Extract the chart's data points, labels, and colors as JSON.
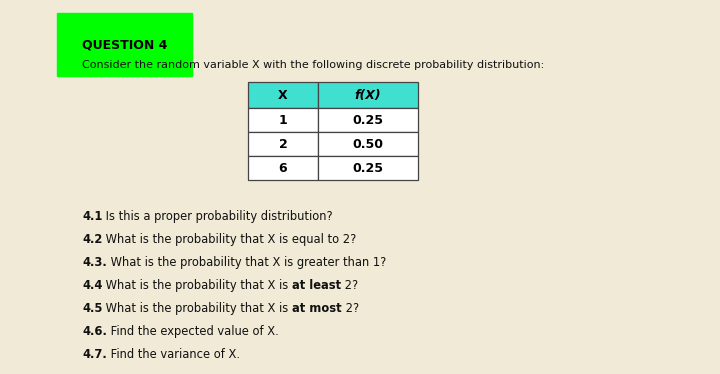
{
  "background_color": "#f0ead6",
  "title": "QUESTION 4",
  "title_bg": "#00ff00",
  "subtitle": "Consider the random variable X with the following discrete probability distribution:",
  "table_headers": [
    "X",
    "f(X)"
  ],
  "table_rows": [
    [
      "1",
      "0.25"
    ],
    [
      "2",
      "0.50"
    ],
    [
      "6",
      "0.25"
    ]
  ],
  "table_header_bg": "#40e0d0",
  "table_border_color": "#444444",
  "cell_bg": "#ffffff",
  "questions": [
    {
      "num": "4.1",
      "parts": [
        {
          "text": " Is this a proper probability distribution?",
          "bold": false
        }
      ]
    },
    {
      "num": "4.2",
      "parts": [
        {
          "text": " What is the probability that X is equal to 2?",
          "bold": false
        }
      ]
    },
    {
      "num": "4.3.",
      "parts": [
        {
          "text": " What is the probability that X is greater than 1?",
          "bold": false
        }
      ]
    },
    {
      "num": "4.4",
      "parts": [
        {
          "text": " What is the probability that X is ",
          "bold": false
        },
        {
          "text": "at least",
          "bold": true
        },
        {
          "text": " 2?",
          "bold": false
        }
      ]
    },
    {
      "num": "4.5",
      "parts": [
        {
          "text": " What is the probability that X is ",
          "bold": false
        },
        {
          "text": "at most",
          "bold": true
        },
        {
          "text": " 2?",
          "bold": false
        }
      ]
    },
    {
      "num": "4.6.",
      "parts": [
        {
          "text": " Find the expected value of X.",
          "bold": false
        }
      ]
    },
    {
      "num": "4.7.",
      "parts": [
        {
          "text": " Find the variance of X.",
          "bold": false
        }
      ]
    }
  ]
}
